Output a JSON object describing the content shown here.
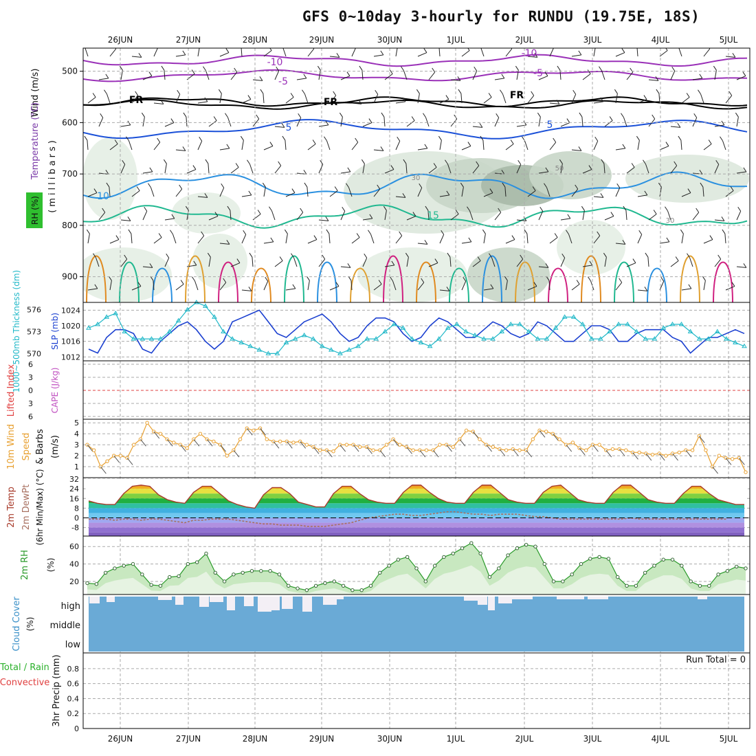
{
  "title": "GFS 0~10day 3-hourly for RUNDU (19.75E, 18S)",
  "dates": [
    "26JUN",
    "27JUN",
    "28JUN",
    "29JUN",
    "30JUN",
    "1JUL",
    "2JUL",
    "3JUL",
    "4JUL",
    "5JUL"
  ],
  "colors": {
    "grid": "#aaaaaa",
    "slp": "#1a3fd0",
    "thickness": "#20b8c8",
    "wind": "#e8a030",
    "rh": "#2a9a2a",
    "cloud": "#6aaad6",
    "temp_line": "#a83a2a",
    "dewpt": "#a87060",
    "freeze": "#000000"
  },
  "panels": {
    "upper": {
      "ylabel_wind": "Wind (m/s)",
      "ylabel_temp": "Temperature (°C)",
      "ylabel_mb": "(millibars)",
      "ylabel_rh": "RH (%)",
      "yticks": [
        "500",
        "600",
        "700",
        "800",
        "900"
      ],
      "contour_labels": [
        "-10",
        "-5",
        "FR",
        "5",
        "10",
        "15",
        "30",
        "50"
      ]
    },
    "slp": {
      "ylabel_left": "1000~500mb Thickness (dm)",
      "ylabel_right": "SLP (mb)",
      "ticks_left": [
        "576",
        "573",
        "570"
      ],
      "ticks_right": [
        "1024",
        "1020",
        "1016",
        "1012"
      ]
    },
    "cape": {
      "ylabel_left": "Lifted Index",
      "ylabel_right": "CAPE (J/kg)",
      "ticks": [
        "6",
        "3",
        "0",
        "3",
        "6"
      ]
    },
    "wind10": {
      "ylabel_a": "10m Wind",
      "ylabel_b": "Speed",
      "ylabel_c": "& Barbs",
      "ylabel_d": "(m/s)",
      "ticks": [
        "5",
        "4",
        "3",
        "2",
        "1"
      ]
    },
    "temp2m": {
      "ylabel_a": "2m Temp",
      "ylabel_b": "2m DewPt",
      "ylabel_c": "(6hr Min/Max) (°C)",
      "ticks": [
        "32",
        "24",
        "16",
        "8",
        "0",
        "-8"
      ]
    },
    "rh2m": {
      "ylabel": "2m RH",
      "unit": "(%)",
      "ticks": [
        "60",
        "40",
        "20"
      ]
    },
    "cloud": {
      "ylabel": "Cloud Cover",
      "unit": "(%)",
      "levels": [
        "high",
        "middle",
        "low"
      ]
    },
    "precip": {
      "ylabel_a": "Total / Rain",
      "ylabel_b": "Convective",
      "ylabel_c": "3hr Precip (mm)",
      "ticks": [
        "0.8",
        "0.6",
        "0.4",
        "0.2",
        "0"
      ],
      "run_total": "Run Total = 0"
    }
  },
  "chart_data": [
    {
      "type": "line",
      "title": "SLP & 1000~500mb Thickness",
      "x_unit": "3-hourly steps from 25JUN 18Z",
      "series": [
        {
          "name": "SLP (mb)",
          "values": [
            1014,
            1013,
            1017,
            1019,
            1019,
            1018,
            1014,
            1013,
            1016,
            1018,
            1020,
            1021,
            1019,
            1016,
            1014,
            1016,
            1021,
            1022,
            1023,
            1024,
            1021,
            1018,
            1017,
            1019,
            1021,
            1022,
            1023,
            1021,
            1018,
            1016,
            1017,
            1020,
            1022,
            1022,
            1021,
            1018,
            1016,
            1017,
            1020,
            1022,
            1021,
            1019,
            1017,
            1017,
            1019,
            1021,
            1020,
            1018,
            1017,
            1018,
            1021,
            1020,
            1018,
            1016,
            1016,
            1018,
            1020,
            1020,
            1019,
            1016,
            1016,
            1018,
            1019,
            1019,
            1019,
            1017,
            1016,
            1013,
            1015,
            1017,
            1017,
            1018,
            1019,
            1018
          ]
        },
        {
          "name": "Thickness (dm)",
          "values": [
            573.5,
            574,
            575,
            575.5,
            573,
            572,
            572,
            572,
            572,
            573,
            574.5,
            576,
            577,
            576.5,
            575,
            573,
            572,
            571.5,
            571,
            570.5,
            570,
            570,
            571.5,
            572,
            572.5,
            572,
            571,
            570.5,
            570,
            570.5,
            571,
            572,
            572,
            573,
            574,
            573.5,
            572,
            571.5,
            571,
            572,
            573.5,
            574,
            573,
            572.5,
            572,
            572,
            573,
            574,
            574,
            573,
            572,
            572,
            573.5,
            575,
            575,
            574,
            572,
            572,
            573,
            574,
            574,
            573,
            572,
            572,
            573.5,
            574,
            574,
            573,
            572,
            572,
            573,
            572,
            571.5,
            571
          ]
        }
      ],
      "ylim_left": [
        569,
        577
      ],
      "ylim_right": [
        1011,
        1026
      ]
    },
    {
      "type": "line",
      "title": "10m Wind Speed",
      "ylabel": "(m/s)",
      "values": [
        3,
        2.5,
        1,
        1.5,
        2,
        2,
        1.8,
        3,
        3.5,
        5,
        4.2,
        4,
        3.5,
        3.2,
        3,
        2.7,
        3.5,
        4,
        3.5,
        3.3,
        3,
        2,
        2.5,
        3.5,
        4.5,
        4.3,
        4.5,
        3.5,
        3.3,
        3.3,
        3.3,
        3.2,
        3.3,
        3,
        2.8,
        2.5,
        2.5,
        2.4,
        3,
        3,
        3,
        2.8,
        2.8,
        2.5,
        2.5,
        3,
        3.5,
        3,
        2.8,
        2.5,
        2.5,
        2.5,
        2.5,
        3,
        3,
        2.8,
        3.5,
        4.3,
        4.2,
        3.5,
        3,
        2.8,
        2.6,
        2.5,
        2.6,
        2.5,
        2.5,
        3.5,
        4.3,
        4.2,
        4,
        3.5,
        3,
        3.2,
        2.7,
        2.5,
        3,
        3,
        2.5,
        2.6,
        2.6,
        2.5,
        2.3,
        2.3,
        2.2,
        2.1,
        2.2,
        2,
        2.2,
        2.3,
        2.5,
        2.5,
        3.8,
        2.5,
        1,
        2,
        1.8,
        1.7,
        1.8,
        0.5
      ],
      "ylim": [
        0,
        5
      ]
    },
    {
      "type": "area",
      "title": "2m Temp / DewPt",
      "ylabel": "(°C)",
      "series": [
        {
          "name": "2m Temp",
          "values": [
            14,
            12,
            11,
            11,
            20,
            26,
            27,
            26,
            19,
            15,
            13,
            12,
            21,
            26,
            26,
            20,
            14,
            11,
            9,
            8,
            19,
            25,
            25,
            20,
            13,
            11,
            9,
            9,
            20,
            26,
            26,
            20,
            15,
            13,
            12,
            12,
            21,
            27,
            27,
            21,
            16,
            13,
            12,
            12,
            21,
            27,
            27,
            21,
            15,
            13,
            12,
            12,
            21,
            26,
            27,
            21,
            15,
            13,
            12,
            12,
            21,
            27,
            27,
            21,
            15,
            13,
            12,
            12,
            20,
            26,
            26,
            20,
            15,
            13,
            11,
            11
          ]
        },
        {
          "name": "2m DewPt",
          "values": [
            -1,
            -1,
            -1,
            -2,
            -1,
            -1,
            -2,
            -1,
            -1,
            -2,
            -3,
            -4,
            -2,
            -2,
            -1,
            -1,
            -1,
            -2,
            -3,
            -4,
            -5,
            -5,
            -6,
            -6,
            -6,
            -7,
            -7,
            -7,
            -6,
            -5,
            -4,
            -2,
            0,
            1,
            2,
            3,
            3,
            2,
            2,
            3,
            4,
            5,
            5,
            4,
            3,
            3,
            2,
            3,
            3,
            3,
            2,
            1,
            1,
            0,
            -1,
            -1,
            -1,
            -1,
            -1,
            -1,
            -1,
            -1,
            0,
            -1,
            -1,
            -1,
            -1,
            -1,
            -1,
            -1,
            -1,
            -1,
            -1,
            -1
          ]
        }
      ],
      "ylim": [
        -15,
        32
      ]
    },
    {
      "type": "area",
      "title": "2m RH",
      "ylabel": "(%)",
      "values": [
        18,
        17,
        30,
        35,
        38,
        40,
        28,
        16,
        15,
        25,
        26,
        40,
        42,
        52,
        30,
        20,
        28,
        30,
        32,
        32,
        32,
        28,
        15,
        12,
        10,
        15,
        18,
        20,
        15,
        10,
        10,
        15,
        30,
        38,
        45,
        48,
        35,
        20,
        38,
        48,
        52,
        58,
        64,
        52,
        25,
        35,
        50,
        58,
        62,
        60,
        40,
        20,
        20,
        28,
        40,
        46,
        48,
        46,
        25,
        15,
        15,
        30,
        38,
        45,
        45,
        38,
        20,
        15,
        15,
        28,
        32,
        37,
        35
      ]
    }
  ]
}
